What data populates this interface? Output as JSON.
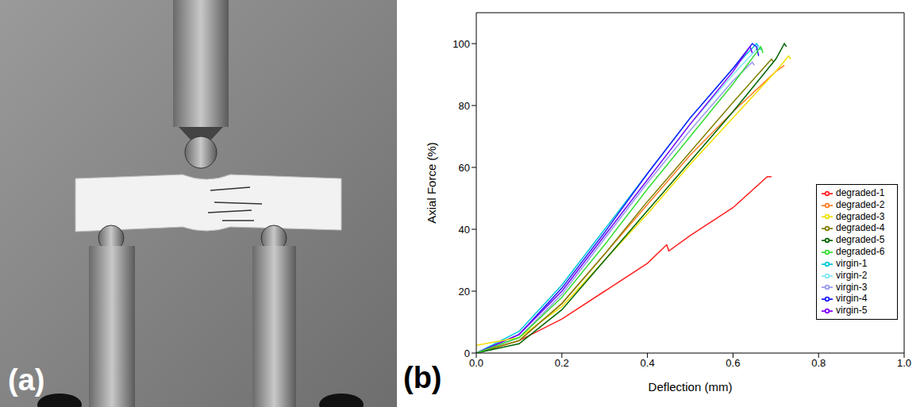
{
  "photo_panel": {
    "label": "(a)"
  },
  "chart_panel": {
    "label": "(b)"
  },
  "chart_data": {
    "type": "line",
    "x_label": "Deflection (mm)",
    "y_label": "Axial Force (%)",
    "xlim": [
      0,
      1
    ],
    "xticks": [
      {
        "value": 0,
        "label": "0.0"
      },
      {
        "value": 0.2,
        "label": "0.2"
      },
      {
        "value": 0.4,
        "label": "0.4"
      },
      {
        "value": 0.6,
        "label": "0.6"
      },
      {
        "value": 0.8,
        "label": "0.8"
      },
      {
        "value": 1,
        "label": "1.0"
      }
    ],
    "ylim": [
      0,
      110
    ],
    "yticks": [
      0,
      20,
      40,
      60,
      80,
      100
    ],
    "grid": false,
    "legend": "right",
    "series": [
      {
        "name": "virgin-1",
        "color": "#00c8d8",
        "x": [
          0,
          0.1,
          0.2,
          0.3,
          0.4,
          0.5,
          0.6,
          0.655,
          0.665
        ],
        "values": [
          0,
          7,
          22,
          40,
          58,
          76,
          92,
          100,
          98
        ]
      },
      {
        "name": "virgin-2",
        "color": "#80e8f0",
        "x": [
          0,
          0.1,
          0.2,
          0.3,
          0.4,
          0.5,
          0.6,
          0.66,
          0.67
        ],
        "values": [
          0,
          6,
          20,
          38,
          56,
          74,
          90,
          99,
          98
        ]
      },
      {
        "name": "virgin-3",
        "color": "#9999ee",
        "x": [
          0,
          0.1,
          0.2,
          0.3,
          0.4,
          0.5,
          0.6,
          0.645,
          0.65
        ],
        "values": [
          0,
          5,
          19,
          37,
          55,
          72,
          88,
          94,
          93
        ]
      },
      {
        "name": "virgin-4",
        "color": "#1a1aff",
        "x": [
          0,
          0.1,
          0.2,
          0.3,
          0.4,
          0.5,
          0.6,
          0.645,
          0.655,
          0.66
        ],
        "values": [
          0,
          6,
          21,
          39,
          58,
          76,
          92,
          100,
          99,
          96
        ]
      },
      {
        "name": "virgin-5",
        "color": "#8000ff",
        "x": [
          0,
          0.1,
          0.2,
          0.3,
          0.4,
          0.5,
          0.6,
          0.64,
          0.645
        ],
        "values": [
          0,
          6,
          20,
          38,
          56,
          74,
          91,
          99,
          97
        ]
      },
      {
        "name": "degraded-1",
        "color": "#ff2020",
        "x": [
          0,
          0.1,
          0.2,
          0.3,
          0.4,
          0.445,
          0.45,
          0.5,
          0.6,
          0.68,
          0.69
        ],
        "values": [
          0,
          4,
          11,
          20,
          29,
          35,
          33,
          38,
          47,
          57,
          57
        ]
      },
      {
        "name": "degraded-2",
        "color": "#ff7f27",
        "x": [
          0,
          0.1,
          0.2,
          0.3,
          0.4,
          0.5,
          0.6,
          0.7,
          0.72
        ],
        "values": [
          0,
          4,
          16,
          32,
          48,
          64,
          78,
          91,
          93
        ]
      },
      {
        "name": "degraded-3",
        "color": "#f0e000",
        "x": [
          0,
          0.1,
          0.2,
          0.3,
          0.4,
          0.5,
          0.6,
          0.7,
          0.73,
          0.735
        ],
        "values": [
          2.5,
          5,
          15,
          30,
          45,
          61,
          76,
          91,
          96,
          95
        ]
      },
      {
        "name": "degraded-4",
        "color": "#808000",
        "x": [
          0,
          0.1,
          0.2,
          0.3,
          0.4,
          0.5,
          0.6,
          0.69,
          0.695
        ],
        "values": [
          0,
          4,
          16,
          32,
          49,
          65,
          81,
          95,
          94
        ]
      },
      {
        "name": "degraded-5",
        "color": "#006400",
        "x": [
          0,
          0.1,
          0.2,
          0.3,
          0.4,
          0.5,
          0.6,
          0.7,
          0.72,
          0.725
        ],
        "values": [
          0,
          3,
          14,
          30,
          46,
          62,
          78,
          95,
          100,
          99
        ]
      },
      {
        "name": "degraded-6",
        "color": "#33dd33",
        "x": [
          0,
          0.1,
          0.2,
          0.3,
          0.4,
          0.5,
          0.6,
          0.665,
          0.67
        ],
        "values": [
          0,
          5,
          18,
          35,
          53,
          70,
          87,
          99,
          97
        ]
      }
    ]
  }
}
